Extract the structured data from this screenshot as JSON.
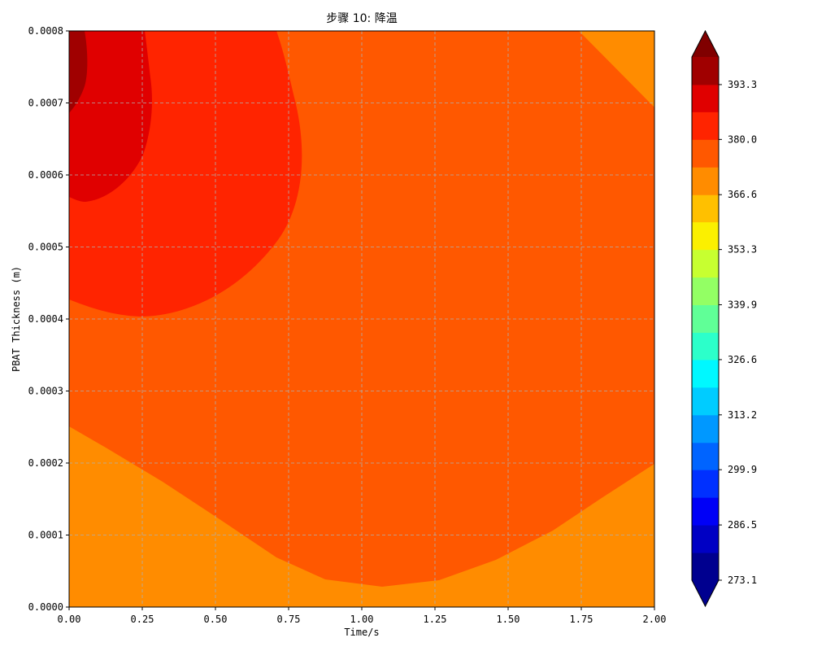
{
  "chart_data": {
    "type": "heatmap",
    "subtype": "filled-contour",
    "title": "步骤 10: 降温",
    "xlabel": "Time/s",
    "ylabel": "PBAT Thickness (m)",
    "xlim": [
      0.0,
      2.0
    ],
    "ylim": [
      0.0,
      0.0008
    ],
    "x_ticks": [
      "0.00",
      "0.25",
      "0.50",
      "0.75",
      "1.00",
      "1.25",
      "1.50",
      "1.75",
      "2.00"
    ],
    "y_ticks": [
      "0.0000",
      "0.0001",
      "0.0002",
      "0.0003",
      "0.0004",
      "0.0005",
      "0.0006",
      "0.0007",
      "0.0008"
    ],
    "grid": true,
    "colormap": "jet",
    "colorbar": {
      "vmin": 273.1,
      "vmax": 400.0,
      "extend": "both",
      "levels": [
        273.1,
        279.8,
        286.5,
        293.2,
        299.9,
        306.5,
        313.2,
        319.9,
        326.6,
        333.2,
        339.9,
        346.6,
        353.3,
        360.0,
        366.6,
        373.3,
        380.0,
        386.7,
        393.3,
        400.0
      ],
      "tick_labels": [
        "273.1",
        "286.5",
        "299.9",
        "313.2",
        "326.6",
        "339.9",
        "353.3",
        "366.6",
        "380.0",
        "393.3"
      ],
      "colors": [
        "#00008f",
        "#0000c4",
        "#0000f7",
        "#0030ff",
        "#0064ff",
        "#0098ff",
        "#00ccff",
        "#00f8ff",
        "#2cffca",
        "#60ff97",
        "#93ff64",
        "#c7ff30",
        "#fbf000",
        "#ffc000",
        "#ff8c00",
        "#ff5800",
        "#ff2400",
        "#e00000",
        "#a00000"
      ],
      "under_color": "#00008f",
      "over_color": "#800000"
    },
    "regions": [
      {
        "level_range": [
          366.6,
          373.3
        ],
        "color": "#ff8c00",
        "location": "bottom band and top-right corner"
      },
      {
        "level_range": [
          373.3,
          380.0
        ],
        "color": "#ff5800",
        "location": "central body"
      },
      {
        "level_range": [
          380.0,
          386.7
        ],
        "color": "#ff2400",
        "location": "upper-left lobe"
      },
      {
        "level_range": [
          386.7,
          393.3
        ],
        "color": "#e00000",
        "location": "top-left corner"
      },
      {
        "level_range": [
          393.3,
          400.0
        ],
        "color": "#a00000",
        "location": "extreme top-left"
      }
    ]
  }
}
